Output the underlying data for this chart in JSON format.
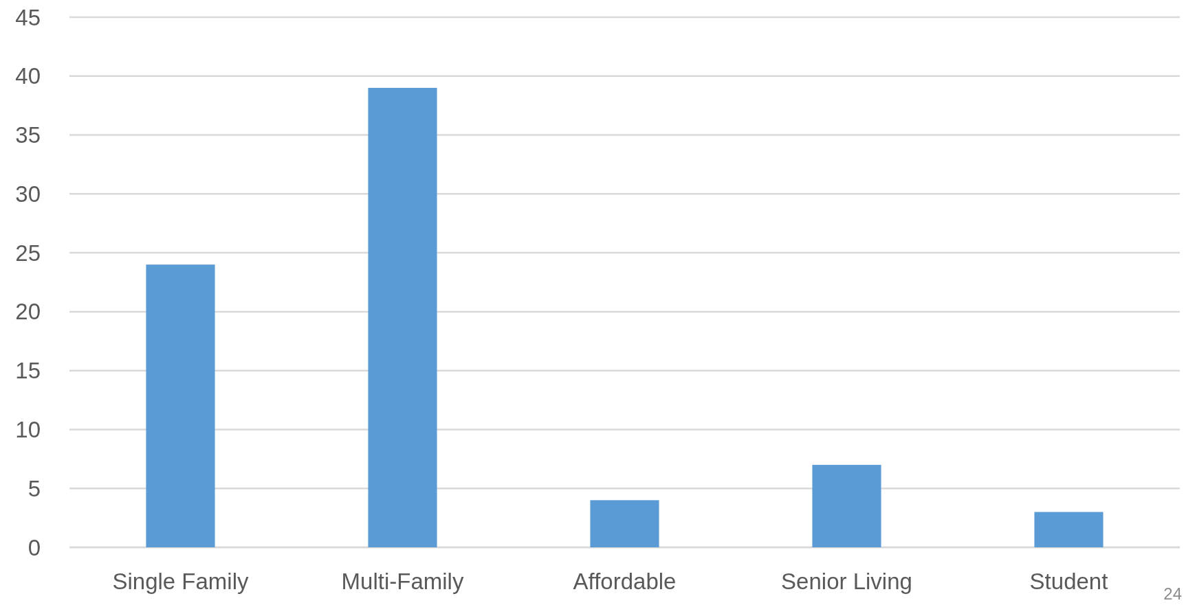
{
  "chart_data": {
    "type": "bar",
    "categories": [
      "Single Family",
      "Multi-Family",
      "Affordable",
      "Senior Living",
      "Student"
    ],
    "values": [
      24,
      39,
      4,
      7,
      3
    ],
    "color": "#5b9bd5",
    "ylim": [
      0,
      45
    ],
    "yticks": [
      0,
      5,
      10,
      15,
      20,
      25,
      30,
      35,
      40,
      45
    ],
    "grid": "y",
    "annotations": [
      "24"
    ]
  }
}
